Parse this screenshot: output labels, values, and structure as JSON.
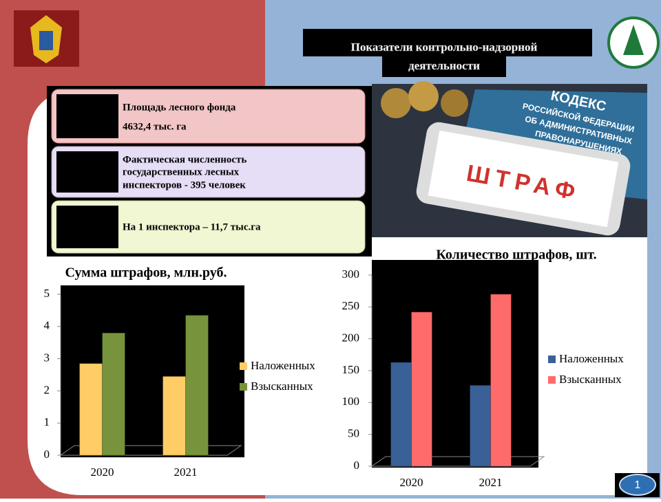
{
  "header": {
    "title_lines": [
      "Показатели контрольно-надзорной",
      "деятельности"
    ]
  },
  "info": [
    {
      "lines": [
        "Площадь лесного фонда",
        "4632,4 тыс. га"
      ]
    },
    {
      "lines": [
        "Фактическая численность",
        "государственных лесных",
        "инспекторов - 395 человек"
      ]
    },
    {
      "lines": [
        "На 1 инспектора – 11,7 тыс.га"
      ]
    }
  ],
  "photo": {
    "lines": [
      "КОДЕКС",
      "РОССИЙСКОЙ ФЕДЕРАЦИИ",
      "ОБ АДМИНИСТРАТИВНЫХ",
      "ПРАВОНАРУШЕНИЯХ"
    ],
    "stamp": "ШТРАФ"
  },
  "page_number": 1,
  "chart_data": [
    {
      "type": "bar",
      "title": "Сумма штрафов, млн.руб.",
      "categories": [
        "2020",
        "2021"
      ],
      "series": [
        {
          "name": "Наложенных",
          "color": "#ffcc66",
          "values": [
            2.85,
            2.45
          ]
        },
        {
          "name": "Взысканных",
          "color": "#77933c",
          "values": [
            3.8,
            4.35
          ]
        }
      ],
      "ylim": [
        0,
        5
      ],
      "yticks": [
        0,
        1,
        2,
        3,
        4,
        5
      ],
      "legend": "right"
    },
    {
      "type": "bar",
      "title": "Количество штрафов, шт.",
      "categories": [
        "2020",
        "2021"
      ],
      "series": [
        {
          "name": "Наложенных",
          "color": "#3a6098",
          "values": [
            163,
            127
          ]
        },
        {
          "name": "Взысканных",
          "color": "#ff6b6b",
          "values": [
            242,
            270
          ]
        }
      ],
      "ylim": [
        0,
        300
      ],
      "yticks": [
        0,
        50,
        100,
        150,
        200,
        250,
        300
      ],
      "legend": "right"
    }
  ]
}
